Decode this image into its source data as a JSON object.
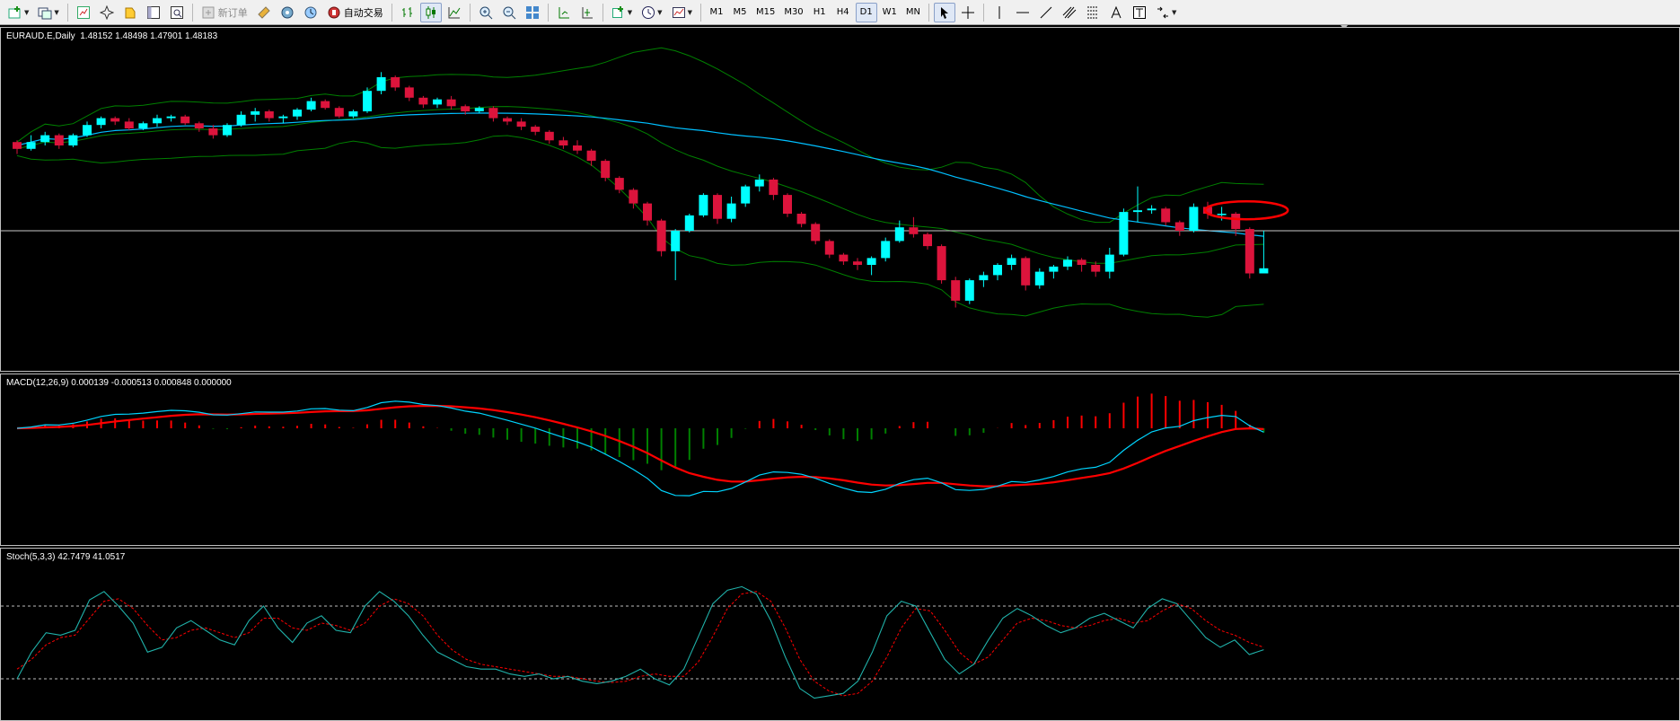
{
  "toolbar": {
    "new_order_label": "新订单",
    "auto_trade_label": "自动交易",
    "timeframes": [
      "M1",
      "M5",
      "M15",
      "M30",
      "H1",
      "H4",
      "D1",
      "W1",
      "MN"
    ],
    "active_timeframe": "D1",
    "icons": [
      "new-chart-icon",
      "profiles-icon",
      "market-watch-icon",
      "navigator-icon",
      "favorites-icon",
      "data-window-icon",
      "terminal-icon",
      "tester-icon",
      "new-order-icon",
      "metaeditor-icon",
      "options-icon",
      "history-icon",
      "auto-trading-icon",
      "bar-chart-icon",
      "candlestick-icon",
      "line-chart-icon",
      "zoom-in-icon",
      "zoom-out-icon",
      "tile-windows-icon",
      "chart-shift-icon",
      "autoscroll-icon",
      "indicators-icon",
      "periods-icon",
      "templates-icon",
      "cursor-icon",
      "crosshair-icon",
      "vertical-line-icon",
      "horizontal-line-icon",
      "trendline-icon",
      "equidistant-channel-icon",
      "fibonacci-icon",
      "text-icon",
      "text-label-icon",
      "arrows-icon"
    ]
  },
  "main_chart": {
    "label": "EURAUD.E,Daily  1.48152 1.48498 1.47901 1.48183"
  },
  "macd": {
    "label": "MACD(12,26,9) 0.000139 -0.000513 0.000848 0.000000"
  },
  "stoch": {
    "label": "Stoch(5,3,3) 42.7479 41.0517"
  },
  "colors": {
    "bull": "#00ffff",
    "bear": "#dc143c",
    "bands": "#008000",
    "ma": "#00bfff",
    "macd_signal": "#ff0000",
    "macd_line": "#00d5ff",
    "hist_pos": "#ff0000",
    "hist_neg": "#008000",
    "stoch_main": "#20b2aa",
    "stoch_signal": "#ff0000",
    "annotation": "#ff0000"
  },
  "chart_data": [
    {
      "type": "candlestick",
      "symbol": "EURAUD.E",
      "timeframe": "Daily",
      "ohlc_last": {
        "open": 1.48152,
        "high": 1.48498,
        "low": 1.47901,
        "close": 1.48183
      },
      "candles": [
        [
          0.52,
          0.48,
          0.53,
          0.45
        ],
        [
          0.48,
          0.52,
          0.56,
          0.47
        ],
        [
          0.52,
          0.56,
          0.58,
          0.5
        ],
        [
          0.56,
          0.5,
          0.57,
          0.48
        ],
        [
          0.5,
          0.56,
          0.57,
          0.49
        ],
        [
          0.56,
          0.62,
          0.64,
          0.55
        ],
        [
          0.62,
          0.66,
          0.67,
          0.6
        ],
        [
          0.66,
          0.64,
          0.67,
          0.62
        ],
        [
          0.64,
          0.6,
          0.66,
          0.59
        ],
        [
          0.6,
          0.63,
          0.64,
          0.59
        ],
        [
          0.63,
          0.66,
          0.68,
          0.61
        ],
        [
          0.66,
          0.67,
          0.68,
          0.64
        ],
        [
          0.67,
          0.63,
          0.68,
          0.62
        ],
        [
          0.63,
          0.6,
          0.64,
          0.58
        ],
        [
          0.6,
          0.56,
          0.62,
          0.54
        ],
        [
          0.56,
          0.62,
          0.63,
          0.55
        ],
        [
          0.62,
          0.68,
          0.7,
          0.61
        ],
        [
          0.68,
          0.7,
          0.72,
          0.64
        ],
        [
          0.7,
          0.66,
          0.71,
          0.64
        ],
        [
          0.66,
          0.67,
          0.68,
          0.63
        ],
        [
          0.67,
          0.71,
          0.72,
          0.65
        ],
        [
          0.71,
          0.76,
          0.78,
          0.7
        ],
        [
          0.76,
          0.72,
          0.77,
          0.71
        ],
        [
          0.72,
          0.67,
          0.73,
          0.66
        ],
        [
          0.67,
          0.7,
          0.71,
          0.66
        ],
        [
          0.7,
          0.82,
          0.84,
          0.69
        ],
        [
          0.82,
          0.9,
          0.93,
          0.8
        ],
        [
          0.9,
          0.84,
          0.91,
          0.82
        ],
        [
          0.84,
          0.78,
          0.85,
          0.76
        ],
        [
          0.78,
          0.74,
          0.79,
          0.72
        ],
        [
          0.74,
          0.77,
          0.78,
          0.72
        ],
        [
          0.77,
          0.73,
          0.79,
          0.71
        ],
        [
          0.73,
          0.7,
          0.74,
          0.68
        ],
        [
          0.7,
          0.72,
          0.73,
          0.69
        ],
        [
          0.72,
          0.66,
          0.73,
          0.64
        ],
        [
          0.66,
          0.64,
          0.67,
          0.62
        ],
        [
          0.64,
          0.61,
          0.66,
          0.59
        ],
        [
          0.61,
          0.58,
          0.62,
          0.56
        ],
        [
          0.58,
          0.53,
          0.59,
          0.51
        ],
        [
          0.53,
          0.5,
          0.55,
          0.48
        ],
        [
          0.5,
          0.47,
          0.53,
          0.45
        ],
        [
          0.47,
          0.41,
          0.48,
          0.38
        ],
        [
          0.41,
          0.31,
          0.42,
          0.29
        ],
        [
          0.31,
          0.24,
          0.32,
          0.22
        ],
        [
          0.24,
          0.16,
          0.25,
          0.13
        ],
        [
          0.16,
          0.06,
          0.17,
          0.03
        ],
        [
          0.06,
          -0.12,
          0.07,
          -0.15
        ],
        [
          -0.12,
          0.0,
          0.01,
          -0.29
        ],
        [
          0.0,
          0.09,
          0.1,
          -0.01
        ],
        [
          0.09,
          0.21,
          0.22,
          0.08
        ],
        [
          0.21,
          0.07,
          0.22,
          0.04
        ],
        [
          0.07,
          0.16,
          0.2,
          0.05
        ],
        [
          0.16,
          0.26,
          0.27,
          0.14
        ],
        [
          0.26,
          0.3,
          0.33,
          0.23
        ],
        [
          0.3,
          0.21,
          0.31,
          0.18
        ],
        [
          0.21,
          0.1,
          0.22,
          0.08
        ],
        [
          0.1,
          0.04,
          0.11,
          0.02
        ],
        [
          0.04,
          -0.06,
          0.05,
          -0.08
        ],
        [
          -0.06,
          -0.14,
          -0.05,
          -0.16
        ],
        [
          -0.14,
          -0.18,
          -0.13,
          -0.2
        ],
        [
          -0.18,
          -0.2,
          -0.16,
          -0.23
        ],
        [
          -0.2,
          -0.16,
          -0.15,
          -0.26
        ],
        [
          -0.16,
          -0.06,
          -0.04,
          -0.18
        ],
        [
          -0.06,
          0.02,
          0.06,
          -0.07
        ],
        [
          0.02,
          -0.02,
          0.08,
          -0.04
        ],
        [
          -0.02,
          -0.09,
          -0.01,
          -0.11
        ],
        [
          -0.09,
          -0.29,
          -0.08,
          -0.31
        ],
        [
          -0.29,
          -0.41,
          -0.27,
          -0.45
        ],
        [
          -0.41,
          -0.29,
          -0.28,
          -0.43
        ],
        [
          -0.29,
          -0.26,
          -0.24,
          -0.33
        ],
        [
          -0.26,
          -0.2,
          -0.19,
          -0.29
        ],
        [
          -0.2,
          -0.16,
          -0.14,
          -0.23
        ],
        [
          -0.16,
          -0.32,
          -0.15,
          -0.35
        ],
        [
          -0.32,
          -0.24,
          -0.22,
          -0.34
        ],
        [
          -0.24,
          -0.21,
          -0.2,
          -0.28
        ],
        [
          -0.21,
          -0.17,
          -0.15,
          -0.23
        ],
        [
          -0.17,
          -0.2,
          -0.16,
          -0.24
        ],
        [
          -0.2,
          -0.24,
          -0.18,
          -0.27
        ],
        [
          -0.24,
          -0.14,
          -0.1,
          -0.28
        ],
        [
          -0.14,
          0.11,
          0.13,
          -0.15
        ],
        [
          0.11,
          0.12,
          0.26,
          0.05
        ],
        [
          0.12,
          0.13,
          0.15,
          0.1
        ],
        [
          0.13,
          0.05,
          0.14,
          0.03
        ],
        [
          0.05,
          0.0,
          0.06,
          -0.03
        ],
        [
          0.0,
          0.14,
          0.16,
          -0.01
        ],
        [
          0.14,
          0.1,
          0.17,
          0.07
        ],
        [
          0.1,
          0.1,
          0.14,
          0.06
        ],
        [
          0.1,
          0.01,
          0.11,
          -0.03
        ],
        [
          0.01,
          -0.25,
          0.02,
          -0.28
        ],
        [
          -0.25,
          -0.22,
          0.0,
          -0.24
        ]
      ],
      "hline": 0.0
    },
    {
      "type": "line",
      "name": "MACD(12,26,9)",
      "values": {
        "main": 0.000139,
        "signal": -0.000513,
        "histogram": 0.000848
      }
    },
    {
      "type": "line",
      "name": "Stoch(5,3,3)",
      "values": {
        "main": 42.7479,
        "signal": 41.0517
      },
      "levels": [
        80,
        20
      ],
      "main": [
        20,
        42,
        58,
        56,
        60,
        85,
        92,
        80,
        66,
        42,
        46,
        62,
        68,
        60,
        52,
        48,
        68,
        80,
        62,
        50,
        66,
        72,
        60,
        58,
        80,
        92,
        84,
        72,
        56,
        42,
        36,
        30,
        28,
        28,
        24,
        22,
        24,
        20,
        22,
        18,
        16,
        18,
        22,
        28,
        20,
        15,
        28,
        55,
        82,
        93,
        96,
        90,
        68,
        38,
        12,
        4,
        6,
        8,
        18,
        42,
        72,
        84,
        80,
        58,
        36,
        24,
        32,
        52,
        70,
        78,
        72,
        64,
        58,
        62,
        70,
        74,
        68,
        62,
        78,
        86,
        82,
        68,
        54,
        46,
        52,
        40,
        44
      ],
      "signal": [
        28,
        36,
        48,
        54,
        56,
        70,
        84,
        86,
        78,
        64,
        52,
        54,
        60,
        62,
        58,
        54,
        58,
        70,
        70,
        62,
        60,
        66,
        64,
        60,
        66,
        80,
        86,
        82,
        72,
        56,
        44,
        36,
        32,
        30,
        28,
        26,
        24,
        22,
        22,
        20,
        18,
        17,
        18,
        22,
        24,
        22,
        22,
        34,
        55,
        78,
        90,
        92,
        84,
        62,
        36,
        18,
        10,
        6,
        8,
        18,
        38,
        62,
        78,
        76,
        60,
        42,
        32,
        38,
        52,
        66,
        70,
        68,
        64,
        62,
        64,
        68,
        70,
        66,
        68,
        76,
        82,
        78,
        68,
        60,
        56,
        50,
        46
      ]
    }
  ]
}
